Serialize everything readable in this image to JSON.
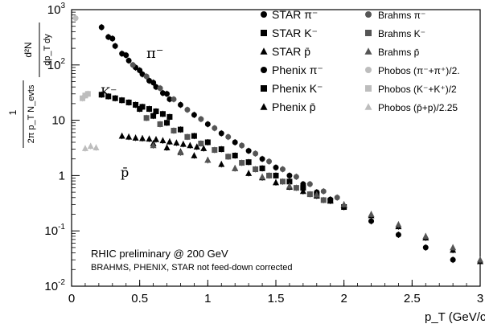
{
  "chart_data": {
    "type": "scatter",
    "title": "",
    "xlabel": "p_T (GeV/c)",
    "ylabel": "1/(2π p_T N_evts) d²N/(dp_T dy)",
    "x_range": [
      0,
      3
    ],
    "y_range": [
      0.01,
      1000
    ],
    "y_scale": "log",
    "grid": false,
    "legend_position": "top-right",
    "x_ticks": [
      "0",
      "0.5",
      "1",
      "1.5",
      "2",
      "2.5",
      "3"
    ],
    "y_ticks": [
      "10^{-2}",
      "10^{-1}",
      "1",
      "10",
      "10^{2}",
      "10^{3}"
    ],
    "annotations": [
      {
        "text": "π⁻",
        "x": 0.57,
        "y": 190
      },
      {
        "text": "K⁻",
        "x": 0.18,
        "y": 45
      },
      {
        "text": "p̄",
        "x": 0.36,
        "y": 2.0
      },
      {
        "text": "RHIC preliminary @ 200 GeV",
        "x": 0.1,
        "y": 0.09
      },
      {
        "text": "BRAHMS, PHENIX, STAR not feed-down corrected",
        "x": 0.1,
        "y": 0.05
      }
    ],
    "series": [
      {
        "name": "STAR π⁻",
        "marker": "circle",
        "color": "#000000",
        "x": [
          0.22,
          0.27,
          0.32,
          0.37,
          0.42,
          0.47,
          0.52,
          0.57,
          0.62,
          0.67,
          0.72
        ],
        "y": [
          480,
          320,
          220,
          160,
          120,
          90,
          68,
          52,
          40,
          31,
          24
        ]
      },
      {
        "name": "STAR K⁻",
        "marker": "square",
        "color": "#000000",
        "x": [
          0.22,
          0.27,
          0.32,
          0.37,
          0.42,
          0.47,
          0.52,
          0.57,
          0.62,
          0.67,
          0.72
        ],
        "y": [
          29,
          27,
          25,
          23,
          21,
          19,
          17.5,
          16,
          14.5,
          13,
          11.5
        ]
      },
      {
        "name": "STAR p̄",
        "marker": "triangle",
        "color": "#000000",
        "x": [
          0.37,
          0.42,
          0.47,
          0.52,
          0.57,
          0.62,
          0.67,
          0.72,
          0.77,
          0.82,
          0.87,
          0.92,
          0.97
        ],
        "y": [
          5.2,
          5.0,
          4.8,
          4.7,
          4.6,
          4.5,
          4.3,
          4.1,
          3.9,
          3.7,
          3.5,
          3.3,
          3.1
        ]
      },
      {
        "name": "Phenix π⁻",
        "marker": "circle",
        "color": "#000000",
        "x": [
          0.3,
          0.4,
          0.5,
          0.6,
          0.7,
          0.8,
          0.9,
          1.0,
          1.1,
          1.2,
          1.3,
          1.4,
          1.5,
          1.6,
          1.7,
          1.8,
          1.9,
          2.0,
          2.2,
          2.4,
          2.6,
          2.8
        ],
        "y": [
          300,
          150,
          80,
          48,
          30,
          19,
          12.5,
          8.5,
          5.8,
          4.0,
          2.8,
          2.0,
          1.4,
          1.0,
          0.7,
          0.5,
          0.37,
          0.27,
          0.15,
          0.085,
          0.05,
          0.03
        ]
      },
      {
        "name": "Phenix K⁻",
        "marker": "square",
        "color": "#000000",
        "x": [
          0.5,
          0.6,
          0.7,
          0.8,
          0.9,
          1.0,
          1.1,
          1.2,
          1.3,
          1.4,
          1.5,
          1.6,
          1.7,
          1.8,
          1.9,
          2.0
        ],
        "y": [
          16,
          12,
          9,
          6.8,
          5.2,
          4.0,
          3.0,
          2.3,
          1.75,
          1.35,
          1.0,
          0.78,
          0.6,
          0.45,
          0.35,
          0.27
        ]
      },
      {
        "name": "Phenix p̄",
        "marker": "triangle",
        "color": "#000000",
        "x": [
          0.6,
          0.7,
          0.8,
          0.9,
          1.0,
          1.1,
          1.2,
          1.3,
          1.4,
          1.5,
          1.6,
          1.7,
          1.8,
          1.9,
          2.0,
          2.2,
          2.4,
          2.6,
          2.8,
          3.0
        ],
        "y": [
          3.8,
          3.2,
          2.7,
          2.3,
          1.9,
          1.6,
          1.35,
          1.1,
          0.92,
          0.75,
          0.62,
          0.52,
          0.43,
          0.35,
          0.29,
          0.19,
          0.12,
          0.075,
          0.045,
          0.028
        ]
      },
      {
        "name": "Brahms π⁻",
        "marker": "circle",
        "color": "#555555",
        "x": [
          0.45,
          0.55,
          0.65,
          0.75,
          0.85,
          0.95,
          1.05,
          1.15,
          1.25,
          1.35,
          1.45,
          1.55,
          1.65,
          1.75,
          1.85,
          1.95
        ],
        "y": [
          100,
          62,
          38,
          24,
          15.5,
          10.5,
          7.2,
          5.0,
          3.5,
          2.5,
          1.8,
          1.3,
          0.95,
          0.7,
          0.52,
          0.4
        ]
      },
      {
        "name": "Brahms K⁻",
        "marker": "square",
        "color": "#555555",
        "x": [
          0.55,
          0.65,
          0.75,
          0.85,
          0.95,
          1.05,
          1.15,
          1.25,
          1.35,
          1.45,
          1.55,
          1.65,
          1.75,
          1.85
        ],
        "y": [
          11,
          8.5,
          6.5,
          5.0,
          3.8,
          2.9,
          2.2,
          1.7,
          1.3,
          1.0,
          0.78,
          0.6,
          0.46,
          0.36
        ]
      },
      {
        "name": "Brahms p̄",
        "marker": "triangle",
        "color": "#555555",
        "x": [
          0.6,
          0.8,
          1.0,
          1.2,
          1.4,
          1.6,
          1.8,
          2.0,
          2.2,
          2.4,
          2.6,
          2.8,
          3.0
        ],
        "y": [
          3.5,
          2.6,
          1.9,
          1.35,
          0.95,
          0.65,
          0.45,
          0.3,
          0.2,
          0.13,
          0.08,
          0.05,
          0.03
        ]
      },
      {
        "name": "Phobos (π⁻+π⁺)/2.",
        "marker": "circle",
        "color": "#bdbdbd",
        "x": [
          0.03
        ],
        "y": [
          700
        ]
      },
      {
        "name": "Phobos (K⁻+K⁺)/2",
        "marker": "square",
        "color": "#bdbdbd",
        "x": [
          0.08,
          0.1,
          0.12
        ],
        "y": [
          25,
          28,
          30
        ]
      },
      {
        "name": "Phobos (p̄+p)/2.25",
        "marker": "triangle",
        "color": "#bdbdbd",
        "x": [
          0.1,
          0.14,
          0.18
        ],
        "y": [
          3.1,
          3.4,
          3.2
        ]
      }
    ]
  },
  "labels": {
    "y_axis_frac_top_num": "d²N",
    "y_axis_frac_top_den": "dp_T dy",
    "y_axis_frac_left_num": "1",
    "y_axis_frac_left_den": "2π p_T N_evts",
    "x_axis_label": "p_T (GeV/c)",
    "curve_label_pi": "π⁻",
    "curve_label_k": "K⁻",
    "curve_label_pbar": "p̄",
    "note_line1": "RHIC preliminary @ 200 GeV",
    "note_line2": "BRAHMS, PHENIX, STAR not feed-down corrected"
  }
}
